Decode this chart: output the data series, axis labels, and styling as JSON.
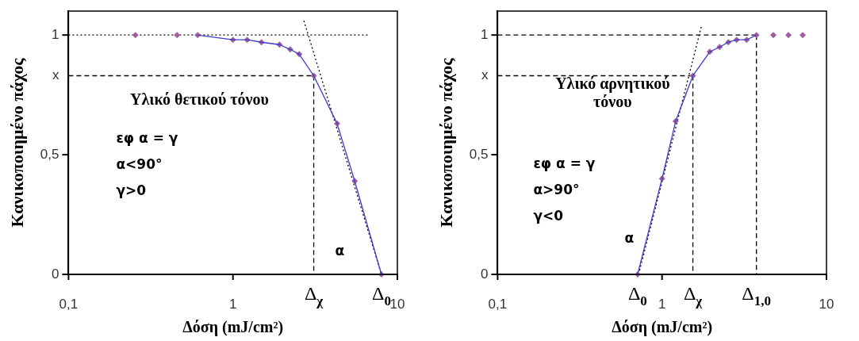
{
  "chart_data": [
    {
      "type": "line",
      "xlabel": "Δόση (mJ/cm²)",
      "ylabel": "Κανικοποιημένο πάχος",
      "log": "x",
      "grid": false,
      "legend": false,
      "xlim": [
        0.1,
        10
      ],
      "xticks": [
        {
          "value": 0.1,
          "label": "0,1"
        },
        {
          "value": 1,
          "label": "1"
        },
        {
          "value": 10,
          "label": "10"
        }
      ],
      "ylim": [
        0,
        1.1
      ],
      "yticks": [
        {
          "value": 0,
          "label": "0"
        },
        {
          "value": 0.5,
          "label": "0,5"
        },
        {
          "value": 1,
          "label": "1"
        }
      ],
      "series": [
        {
          "color": "#3b3bc8",
          "marker": "none",
          "line_style": "solid",
          "x": [
            0.61,
            1.0,
            1.22,
            1.49,
            1.92,
            2.23,
            2.53,
            3.1,
            4.3,
            5.5,
            8.0
          ],
          "values": [
            1,
            0.98,
            0.98,
            0.97,
            0.96,
            0.94,
            0.92,
            0.83,
            0.63,
            0.39,
            0
          ]
        },
        {
          "type": "scatter",
          "color": "#a0609f",
          "marker": "diamond",
          "x": [
            0.255,
            0.457,
            0.61,
            1.0,
            1.22,
            1.49,
            1.92,
            2.23,
            2.53,
            3.1,
            4.3,
            5.5,
            8.0
          ],
          "values": [
            1,
            1,
            1,
            0.98,
            0.98,
            0.97,
            0.96,
            0.94,
            0.92,
            0.83,
            0.63,
            0.39,
            0
          ]
        },
        {
          "type": "line",
          "color": "#000000",
          "marker": "none",
          "line_style": "dotted",
          "x": [
            0.1,
            6.6
          ],
          "values": [
            1,
            1
          ]
        },
        {
          "type": "line",
          "color": "#000000",
          "marker": "none",
          "line_style": "dashed",
          "x": [
            0.1,
            3.1
          ],
          "values": [
            0.83,
            0.83
          ]
        },
        {
          "type": "line",
          "color": "#000000",
          "marker": "none",
          "line_style": "dashed",
          "x": [
            3.1,
            3.1
          ],
          "values": [
            0.83,
            0
          ]
        },
        {
          "type": "line",
          "color": "#000000",
          "marker": "none",
          "line_style": "dotted",
          "x": [
            2.7,
            8
          ],
          "values": [
            1.06,
            0
          ]
        }
      ],
      "annotations": [
        "Υλικό θετικού τόνου",
        "εφ α = γ",
        "α<90°",
        "γ>0",
        "α",
        {
          "text": "x",
          "x": 0.1,
          "y": 0.83
        },
        {
          "text": "Δ$_{χ}$",
          "x": 3.1,
          "y": 0
        },
        {
          "text": "Δ$_{0}$",
          "x": 8.0,
          "y": 0
        }
      ]
    },
    {
      "type": "line",
      "xlabel": "Δόση (mJ/cm²)",
      "ylabel": "Κανικοποιημένο πάχος",
      "log": "x",
      "grid": false,
      "legend": false,
      "xlim": [
        0.1,
        10
      ],
      "xticks": [
        {
          "value": 0.1,
          "label": "0,1"
        },
        {
          "value": 1,
          "label": "1"
        },
        {
          "value": 10,
          "label": "10"
        }
      ],
      "ylim": [
        0,
        1.1
      ],
      "yticks": [
        {
          "value": 0,
          "label": "0"
        },
        {
          "value": 0.5,
          "label": "0,5"
        },
        {
          "value": 1,
          "label": "1"
        }
      ],
      "series": [
        {
          "color": "#3b3bc8",
          "marker": "none",
          "line_style": "solid",
          "x": [
            0.71,
            1.0,
            1.21,
            1.54,
            1.95,
            2.24,
            2.53,
            2.84,
            3.27,
            3.75
          ],
          "values": [
            0,
            0.4,
            0.64,
            0.83,
            0.93,
            0.95,
            0.97,
            0.98,
            0.98,
            1
          ]
        },
        {
          "type": "scatter",
          "color": "#a0609f",
          "marker": "diamond",
          "x": [
            0.71,
            1.0,
            1.21,
            1.54,
            1.95,
            2.24,
            2.53,
            2.84,
            3.27,
            3.75,
            4.75,
            5.87,
            7.17
          ],
          "values": [
            0,
            0.4,
            0.64,
            0.83,
            0.93,
            0.95,
            0.97,
            0.98,
            0.98,
            1,
            1,
            1,
            1
          ]
        },
        {
          "type": "line",
          "color": "#000000",
          "marker": "none",
          "line_style": "dashed",
          "x": [
            0.1,
            3.75
          ],
          "values": [
            1,
            1
          ]
        },
        {
          "type": "line",
          "color": "#000000",
          "marker": "none",
          "line_style": "dashed",
          "x": [
            3.75,
            3.75
          ],
          "values": [
            1,
            0
          ]
        },
        {
          "type": "line",
          "color": "#000000",
          "marker": "none",
          "line_style": "dashed",
          "x": [
            0.1,
            1.54
          ],
          "values": [
            0.83,
            0.83
          ]
        },
        {
          "type": "line",
          "color": "#000000",
          "marker": "none",
          "line_style": "dashed",
          "x": [
            1.54,
            1.54
          ],
          "values": [
            0.83,
            0
          ]
        },
        {
          "type": "line",
          "color": "#000000",
          "marker": "none",
          "line_style": "dotted",
          "x": [
            0.72,
            1.74
          ],
          "values": [
            0,
            1.04
          ]
        }
      ],
      "annotations": [
        "Υλικό αρνητικού τόνου",
        "εφ α = γ",
        "α>90°",
        "γ<0",
        "α",
        {
          "text": "x",
          "x": 0.1,
          "y": 0.83
        },
        {
          "text": "Δ$_{0}$",
          "x": 0.71,
          "y": 0
        },
        {
          "text": "Δ$_{χ}$",
          "x": 1.54,
          "y": 0
        },
        {
          "text": "Δ$_{1,0}$",
          "x": 3.75,
          "y": 0
        }
      ]
    }
  ]
}
